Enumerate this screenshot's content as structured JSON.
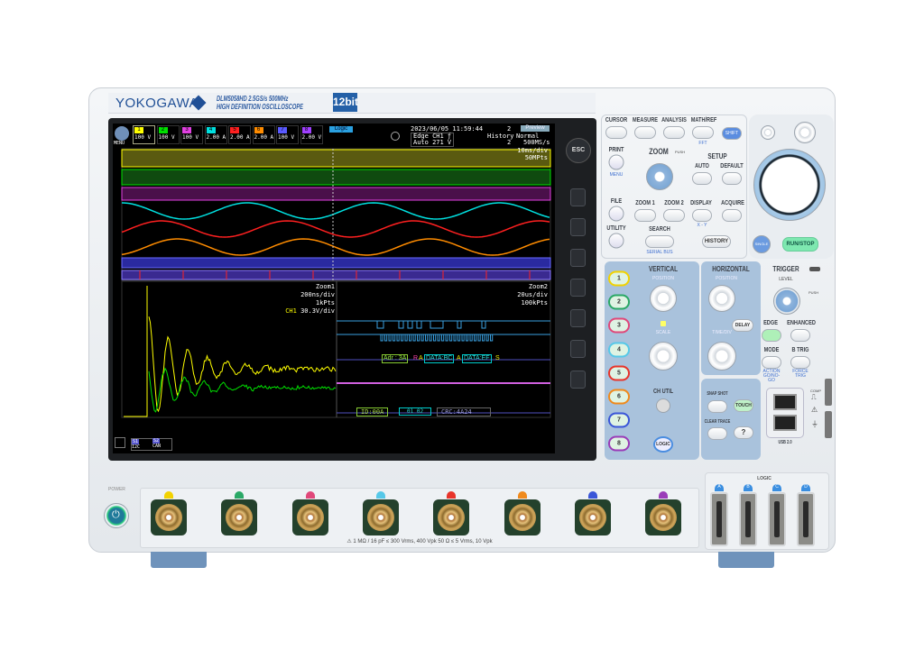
{
  "brand": {
    "logo": "YOKOGAWA",
    "model": "DLM5058HD  2.5GS/s 500MHz",
    "subtitle": "HIGH DEFINITION OSCILLOSCOPE",
    "bit_badge": "12bit"
  },
  "screen": {
    "menu_label": "MENU",
    "channels": [
      {
        "n": "1",
        "value": "100 V",
        "color": "#ffff00"
      },
      {
        "n": "2",
        "value": "100 V",
        "color": "#00e000"
      },
      {
        "n": "3",
        "value": "100 V",
        "color": "#e040e0"
      },
      {
        "n": "4",
        "value": "2.00 A",
        "color": "#00e0e0"
      },
      {
        "n": "5",
        "value": "2.00 A",
        "color": "#ff2020"
      },
      {
        "n": "6",
        "value": "2.00 A",
        "color": "#ff8c00"
      },
      {
        "n": "7",
        "value": "100 V",
        "color": "#5a5aff"
      },
      {
        "n": "8",
        "value": "2.00 V",
        "color": "#a040ff"
      }
    ],
    "logic_label": "Logic",
    "datetime": "2023/06/05 11:59:44",
    "trigger_line1": "Edge CH1 ƒ",
    "trigger_line2": "Auto 271 V",
    "history_label": "History",
    "history_count": "2",
    "history_count2": "2",
    "preview": "Preview",
    "acq_mode": "Normal",
    "sample_rate": "500MS/s",
    "timebase": "10ms/div",
    "record_length": "50MPts",
    "zoom1": {
      "label": "Zoom1",
      "timebase": "200ns/div",
      "points": "1kPts",
      "ch_label": "CH1",
      "ch_scale": "30.3V/div"
    },
    "zoom2": {
      "label": "Zoom2",
      "timebase": "20us/div",
      "points": "100kPts"
    },
    "i2c_decode": {
      "addr": "Adr : 3A",
      "r": "R",
      "a1": "A",
      "data1": "DATA:BC",
      "a2": "A",
      "data2": "DATA:EF",
      "end": "S"
    },
    "can_decode": {
      "id": "ID:00A",
      "data": "01 02",
      "crc": "CRC:4A24"
    },
    "bottom_bus": [
      {
        "n": "S1",
        "label": "I2C"
      },
      {
        "n": "S2",
        "label": "CAN"
      }
    ],
    "esc": "ESC"
  },
  "panel": {
    "top_buttons": [
      "CURSOR",
      "MEASURE",
      "ANALYSIS",
      "MATH/REF"
    ],
    "math_sub": "FFT",
    "shift": "SHIFT",
    "print": "PRINT",
    "menu_sub": "MENU",
    "file": "FILE",
    "utility": "UTILITY",
    "zoom": "ZOOM",
    "push": "PUSH",
    "zoom1": "ZOOM 1",
    "zoom2": "ZOOM 2",
    "search": "SEARCH",
    "search_sub": "SERIAL BUS",
    "setup": "SETUP",
    "auto": "AUTO",
    "default": "DEFAULT",
    "display": "DISPLAY",
    "display_sub": "X - Y",
    "acquire": "ACQUIRE",
    "history": "HISTORY",
    "single": "SINGLE",
    "run_stop": "RUN/STOP",
    "vertical": "VERTICAL",
    "position": "POSITION",
    "scale": "SCALE",
    "ch_util": "CH UTIL",
    "logic": "LOGIC",
    "channel_buttons": [
      "1",
      "2",
      "3",
      "4",
      "5",
      "6",
      "7",
      "8"
    ],
    "channel_colors": [
      "#f2d200",
      "#2aa866",
      "#e0487a",
      "#56c8e8",
      "#e8342a",
      "#f08a1c",
      "#3a56d8",
      "#9a3cb8"
    ],
    "horizontal": "HORIZONTAL",
    "delay": "DELAY",
    "timescale": "TIME/DIV",
    "snapshot": "SNAP SHOT",
    "touch": "TOUCH",
    "clear_trace": "CLEAR TRACE",
    "help": "?",
    "trigger": "TRIGGER",
    "level": "LEVEL",
    "edge": "EDGE",
    "enhanced": "ENHANCED",
    "mode": "MODE",
    "b_trig": "B TRIG",
    "mode_sub": "ACTION GO/NO-GO",
    "btrig_sub": "FORCE TRIG",
    "usb": "USB 2.0",
    "comp": "COMP"
  },
  "front": {
    "power": "POWER",
    "input_spec": "⚠  1 MΩ / 16 pF ≤ 300 Vrms, 400 Vpk    50 Ω ≤ 5 Vrms, 10 Vpk",
    "logic_label": "LOGIC",
    "logic_ports": [
      "A",
      "B",
      "C",
      "D"
    ]
  }
}
